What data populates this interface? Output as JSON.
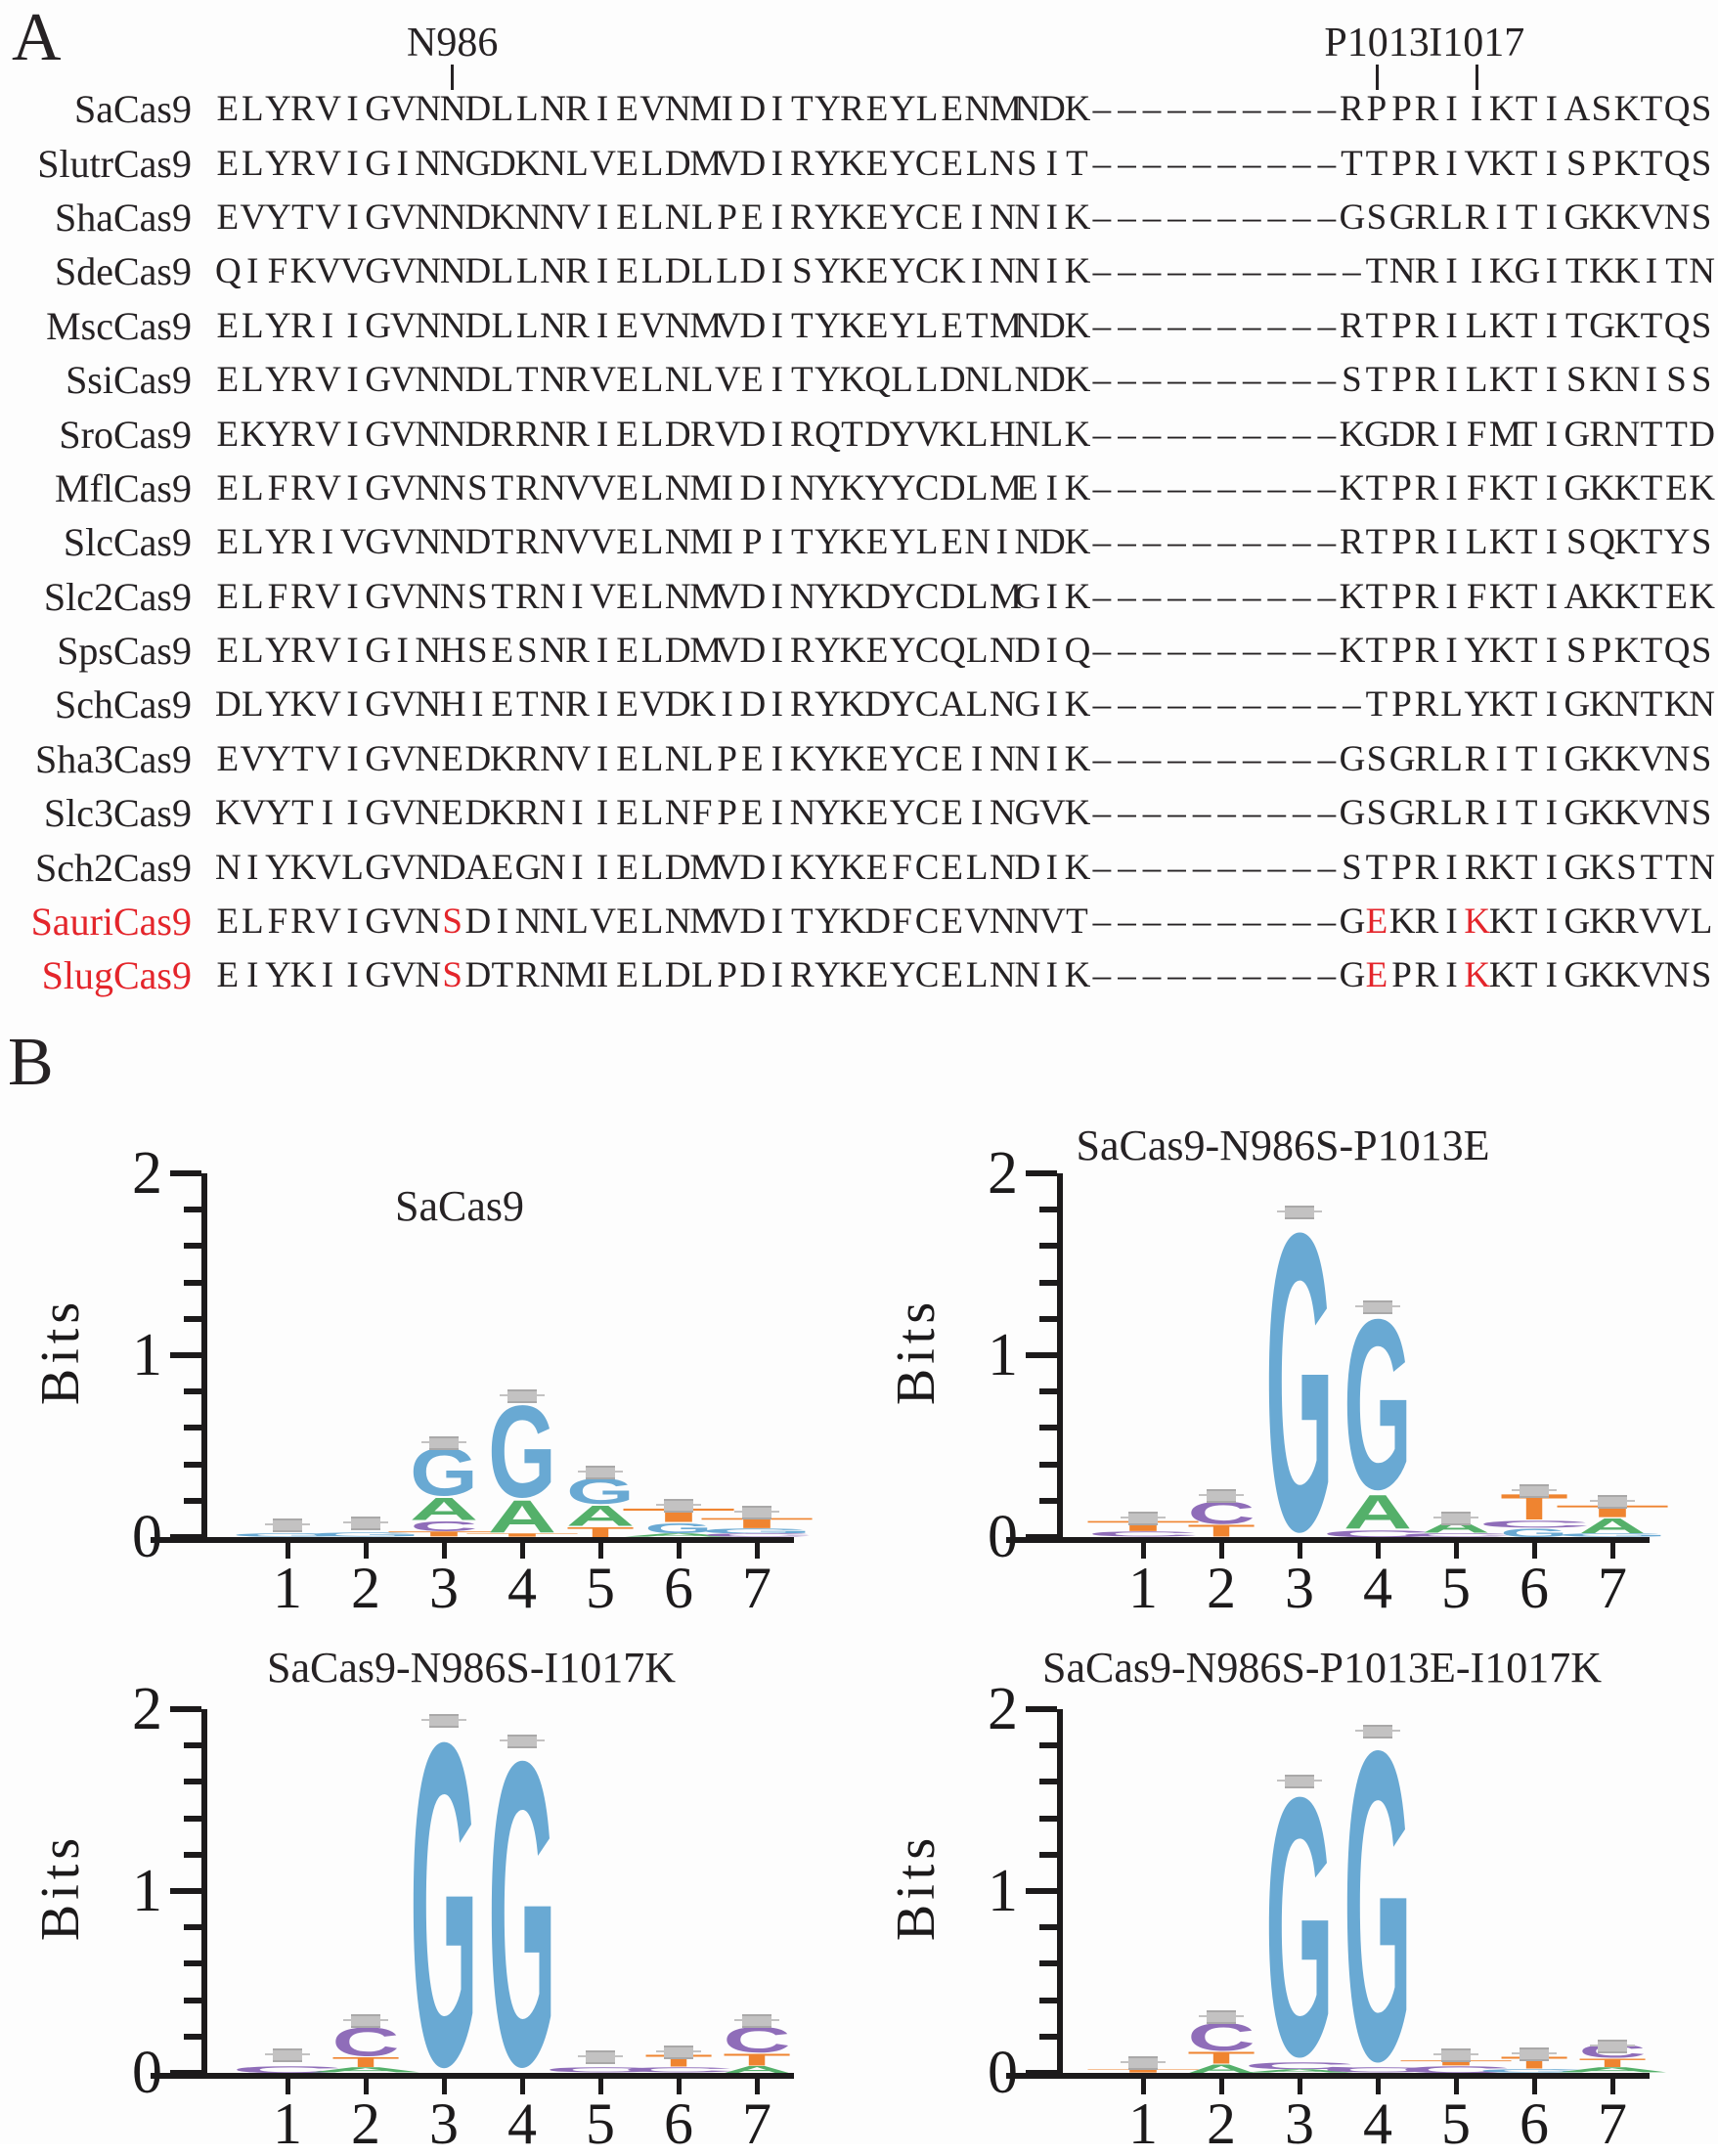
{
  "figure": {
    "panel_a": {
      "label": "A",
      "text_color": "#262224",
      "highlight_color": "#e4252b",
      "markers": [
        {
          "label": "N986",
          "col": 9
        },
        {
          "label": "P1013",
          "col": 46
        },
        {
          "label": "I1017",
          "col": 50
        }
      ],
      "rows": [
        {
          "name": "SaCas9",
          "left": "ELYRVIGVNNDLLNRIEVNMIDITYREYLENMNDK",
          "dashes": 10,
          "tail": "RPPRIIKTIASKTQS",
          "red_name": false,
          "red_left": [],
          "red_tail": []
        },
        {
          "name": "SlutrCas9",
          "left": "ELYRVIGINNGDKNLVELDMVDIRYKEYCELNSIT",
          "dashes": 10,
          "tail": "TTPRIVKTISPKTQS",
          "red_name": false,
          "red_left": [],
          "red_tail": []
        },
        {
          "name": "ShaCas9",
          "left": "EVYTVIGVNNDKNNVIELNLPEIRYKEYCEINNIK",
          "dashes": 10,
          "tail": "GSGRLRITIGKKVNS",
          "red_name": false,
          "red_left": [],
          "red_tail": []
        },
        {
          "name": "SdeCas9",
          "left": "QIFKVVGVNNDLLNRIELDLLDISYKEYCKINNIK",
          "dashes": 11,
          "tail": "TNRIIKGITKKITN",
          "red_name": false,
          "red_left": [],
          "red_tail": []
        },
        {
          "name": "MscCas9",
          "left": "ELYRIIGVNNDLLNRIEVNMVDITYKEYLETMNDK",
          "dashes": 10,
          "tail": "RTPRILKTITGKTQS",
          "red_name": false,
          "red_left": [],
          "red_tail": []
        },
        {
          "name": "SsiCas9",
          "left": "ELYRVIGVNNDLTNRVELNLVEITYKQLLDNLNDK",
          "dashes": 10,
          "tail": "STPRILKTISKNISS",
          "red_name": false,
          "red_left": [],
          "red_tail": []
        },
        {
          "name": "SroCas9",
          "left": "EKYRVIGVNNDRRNRIELDRVDIRQTDYVKLHNLK",
          "dashes": 10,
          "tail": "KGDRIFMTIGRNTTD",
          "red_name": false,
          "red_left": [],
          "red_tail": []
        },
        {
          "name": "MflCas9",
          "left": "ELFRVIGVNNSTRNVVELNMIDINYKYYCDLMEIK",
          "dashes": 10,
          "tail": "KTPRIFKTIGKKTEK",
          "red_name": false,
          "red_left": [],
          "red_tail": []
        },
        {
          "name": "SlcCas9",
          "left": "ELYRIVGVNNDTRNVVELNMIPITYKEYLENINDK",
          "dashes": 10,
          "tail": "RTPRILKTISQKTYS",
          "red_name": false,
          "red_left": [],
          "red_tail": []
        },
        {
          "name": "Slc2Cas9",
          "left": "ELFRVIGVNNSTRNIVELNMVDINYKDYCDLMGIK",
          "dashes": 10,
          "tail": "KTPRIFKTIAKKTEK",
          "red_name": false,
          "red_left": [],
          "red_tail": []
        },
        {
          "name": "SpsCas9",
          "left": "ELYRVIGINHSESNRIELDMVDIRYKEYCQLNDIQ",
          "dashes": 10,
          "tail": "KTPRIYKTISPKTQS",
          "red_name": false,
          "red_left": [],
          "red_tail": []
        },
        {
          "name": "SchCas9",
          "left": "DLYKVIGVNHIETNRIEVDKIDIRYKDYCALNGIK",
          "dashes": 11,
          "tail": "TPRLYKTIGKNTKN",
          "red_name": false,
          "red_left": [],
          "red_tail": []
        },
        {
          "name": "Sha3Cas9",
          "left": "EVYTVIGVNEDKRNVIELNLPEIKYKEYCEINNIK",
          "dashes": 10,
          "tail": "GSGRLRITIGKKVNS",
          "red_name": false,
          "red_left": [],
          "red_tail": []
        },
        {
          "name": "Slc3Cas9",
          "left": "KVYTIIGVNEDKRNIIELNFPEINYKEYCEINGVK",
          "dashes": 10,
          "tail": "GSGRLRITIGKKVNS",
          "red_name": false,
          "red_left": [],
          "red_tail": []
        },
        {
          "name": "Sch2Cas9",
          "left": "NIYKVLGVNDAEGNIIELDMVDIKYKEFCELNDIK",
          "dashes": 10,
          "tail": "STPRIRKTIGKSTTN",
          "red_name": false,
          "red_left": [],
          "red_tail": []
        },
        {
          "name": "SauriCas9",
          "left": "ELFRVIGVNSDINNLVELNMVDITYKDFCEVNNVT",
          "dashes": 10,
          "tail": "GEKRIKKTIGKRVVL",
          "red_name": true,
          "red_left": [
            9
          ],
          "red_tail": [
            1,
            5
          ]
        },
        {
          "name": "SlugCas9",
          "left": "EIYKIIGVNSDTRNMIELDLPDIRYKEYCELNNIK",
          "dashes": 10,
          "tail": "GEPRIKKTIGKKVNS",
          "red_name": true,
          "red_left": [
            9
          ],
          "red_tail": [
            1,
            5
          ]
        }
      ]
    },
    "panel_b": {
      "label": "B",
      "ylabel": "Bits",
      "ymax_bits": 2,
      "yticks": [
        "0",
        "1",
        "2"
      ],
      "xticks": [
        "1",
        "2",
        "3",
        "4",
        "5",
        "6",
        "7"
      ],
      "letter_colors": {
        "A": "#54b06a",
        "C": "#8f6db9",
        "G": "#69a9d3",
        "T": "#ef8430"
      },
      "errorbar_color": "#c3c2c2",
      "logos": [
        {
          "title": "SaCas9",
          "chart_type": "sequence_logo_bar",
          "positions": [
            {
              "x": 1,
              "letters": [
                [
                  "G",
                  0.02,
                  1
                ]
              ],
              "cap": 0.07
            },
            {
              "x": 2,
              "letters": [
                [
                  "G",
                  0.025,
                  1
                ]
              ],
              "cap": 0.08
            },
            {
              "x": 3,
              "letters": [
                [
                  "T",
                  0.03,
                  1
                ],
                [
                  "C",
                  0.06,
                  0
                ],
                [
                  "A",
                  0.13,
                  0
                ],
                [
                  "G",
                  0.28,
                  0
                ]
              ],
              "cap": 0.52
            },
            {
              "x": 4,
              "letters": [
                [
                  "T",
                  0.02,
                  1
                ],
                [
                  "A",
                  0.19,
                  0
                ],
                [
                  "G",
                  0.54,
                  0
                ]
              ],
              "cap": 0.78
            },
            {
              "x": 5,
              "letters": [
                [
                  "T",
                  0.06,
                  0
                ],
                [
                  "A",
                  0.12,
                  0
                ],
                [
                  "G",
                  0.15,
                  0
                ]
              ],
              "cap": 0.36
            },
            {
              "x": 6,
              "letters": [
                [
                  "A",
                  0.02,
                  1
                ],
                [
                  "G",
                  0.06,
                  0
                ],
                [
                  "T",
                  0.08,
                  1
                ]
              ],
              "cap": 0.18
            },
            {
              "x": 7,
              "letters": [
                [
                  "C",
                  0.02,
                  1
                ],
                [
                  "G",
                  0.03,
                  1
                ],
                [
                  "T",
                  0.06,
                  1
                ]
              ],
              "cap": 0.14
            }
          ]
        },
        {
          "title": "SaCas9-N986S-P1013E",
          "chart_type": "sequence_logo_bar",
          "positions": [
            {
              "x": 1,
              "letters": [
                [
                  "C",
                  0.03,
                  1
                ],
                [
                  "T",
                  0.06,
                  1
                ]
              ],
              "cap": 0.11
            },
            {
              "x": 2,
              "letters": [
                [
                  "T",
                  0.07,
                  0
                ],
                [
                  "C",
                  0.13,
                  0
                ]
              ],
              "cap": 0.23
            },
            {
              "x": 3,
              "letters": [
                [
                  "G",
                  1.75,
                  0
                ]
              ],
              "cap": 1.79
            },
            {
              "x": 4,
              "letters": [
                [
                  "C",
                  0.04,
                  1
                ],
                [
                  "A",
                  0.2,
                  0
                ],
                [
                  "G",
                  1.0,
                  0
                ]
              ],
              "cap": 1.27
            },
            {
              "x": 5,
              "letters": [
                [
                  "C",
                  0.02,
                  1
                ],
                [
                  "A",
                  0.07,
                  0
                ]
              ],
              "cap": 0.11
            },
            {
              "x": 6,
              "letters": [
                [
                  "G",
                  0.05,
                  0
                ],
                [
                  "C",
                  0.04,
                  1
                ],
                [
                  "T",
                  0.15,
                  0
                ]
              ],
              "cap": 0.26
            },
            {
              "x": 7,
              "letters": [
                [
                  "G",
                  0.02,
                  1
                ],
                [
                  "A",
                  0.09,
                  0
                ],
                [
                  "T",
                  0.07,
                  1
                ]
              ],
              "cap": 0.2
            }
          ]
        },
        {
          "title": "SaCas9-N986S-I1017K",
          "chart_type": "sequence_logo_bar",
          "positions": [
            {
              "x": 1,
              "letters": [
                [
                  "C",
                  0.04,
                  1
                ]
              ],
              "cap": 0.1
            },
            {
              "x": 2,
              "letters": [
                [
                  "A",
                  0.03,
                  1
                ],
                [
                  "T",
                  0.06,
                  0
                ],
                [
                  "C",
                  0.17,
                  0
                ]
              ],
              "cap": 0.29
            },
            {
              "x": 3,
              "letters": [
                [
                  "G",
                  1.9,
                  0
                ]
              ],
              "cap": 1.94
            },
            {
              "x": 4,
              "letters": [
                [
                  "G",
                  1.79,
                  0
                ]
              ],
              "cap": 1.83
            },
            {
              "x": 5,
              "letters": [
                [
                  "C",
                  0.03,
                  1
                ]
              ],
              "cap": 0.09
            },
            {
              "x": 6,
              "letters": [
                [
                  "C",
                  0.03,
                  1
                ],
                [
                  "T",
                  0.07,
                  0
                ]
              ],
              "cap": 0.12
            },
            {
              "x": 7,
              "letters": [
                [
                  "A",
                  0.04,
                  0
                ],
                [
                  "T",
                  0.07,
                  0
                ],
                [
                  "C",
                  0.15,
                  0
                ]
              ],
              "cap": 0.29
            }
          ]
        },
        {
          "title": "SaCas9-N986S-P1013E-I1017K",
          "chart_type": "sequence_logo_bar",
          "positions": [
            {
              "x": 1,
              "letters": [
                [
                  "T",
                  0.02,
                  1
                ]
              ],
              "cap": 0.06
            },
            {
              "x": 2,
              "letters": [
                [
                  "A",
                  0.05,
                  0
                ],
                [
                  "T",
                  0.07,
                  0
                ],
                [
                  "C",
                  0.16,
                  0
                ]
              ],
              "cap": 0.31
            },
            {
              "x": 3,
              "letters": [
                [
                  "A",
                  0.02,
                  1
                ],
                [
                  "C",
                  0.04,
                  1
                ],
                [
                  "G",
                  1.52,
                  0
                ]
              ],
              "cap": 1.61
            },
            {
              "x": 4,
              "letters": [
                [
                  "C",
                  0.03,
                  1
                ],
                [
                  "G",
                  1.82,
                  0
                ]
              ],
              "cap": 1.88
            },
            {
              "x": 5,
              "letters": [
                [
                  "C",
                  0.04,
                  1
                ],
                [
                  "T",
                  0.03,
                  1
                ]
              ],
              "cap": 0.1
            },
            {
              "x": 6,
              "letters": [
                [
                  "G",
                  0.02,
                  1
                ],
                [
                  "T",
                  0.07,
                  0
                ]
              ],
              "cap": 0.11
            },
            {
              "x": 7,
              "letters": [
                [
                  "A",
                  0.03,
                  1
                ],
                [
                  "T",
                  0.05,
                  0
                ],
                [
                  "C",
                  0.08,
                  0
                ]
              ],
              "cap": 0.15
            }
          ]
        }
      ]
    }
  }
}
